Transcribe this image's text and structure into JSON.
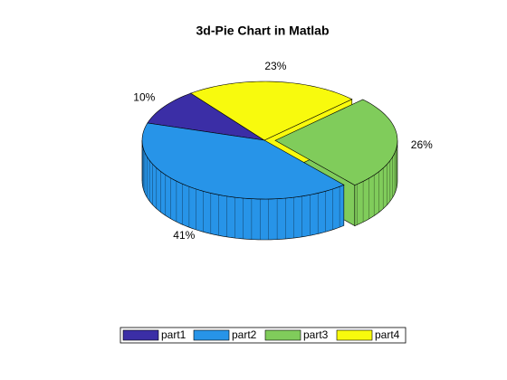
{
  "chart_data": {
    "type": "pie3",
    "title": "3d-Pie Chart in Matlab",
    "categories": [
      "part1",
      "part2",
      "part3",
      "part4"
    ],
    "values": [
      10,
      41,
      26,
      23
    ],
    "value_labels": [
      "10%",
      "41%",
      "26%",
      "23%"
    ],
    "colors": [
      "#3b2ea6",
      "#2794e8",
      "#80cc5b",
      "#f8fa0d"
    ],
    "explode": [
      false,
      false,
      true,
      false
    ],
    "legend": "bottom"
  }
}
